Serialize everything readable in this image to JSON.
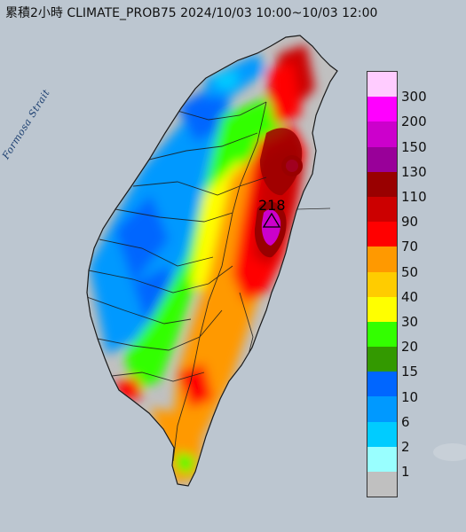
{
  "title": "累積2小時 CLIMATE_PROB75 2024/10/03 10:00~10/03 12:00",
  "sea_label": "Formosa Strait",
  "max_marker": {
    "value_label": "218"
  },
  "legend": {
    "colors": [
      "#ffccff",
      "#ff00ff",
      "#cc00cc",
      "#990099",
      "#990000",
      "#cc0000",
      "#ff0000",
      "#ff9900",
      "#ffcc00",
      "#ffff00",
      "#33ff00",
      "#339900",
      "#0066ff",
      "#0099ff",
      "#00ccff",
      "#99ffff",
      "#c0c0c0"
    ],
    "labels": [
      "300",
      "200",
      "150",
      "130",
      "110",
      "90",
      "70",
      "50",
      "40",
      "30",
      "20",
      "15",
      "10",
      "6",
      "2",
      "1"
    ]
  },
  "colors": {
    "sea": "#bcc6d0",
    "land_outline": "#1a1a1a",
    "marker": "#000000"
  }
}
